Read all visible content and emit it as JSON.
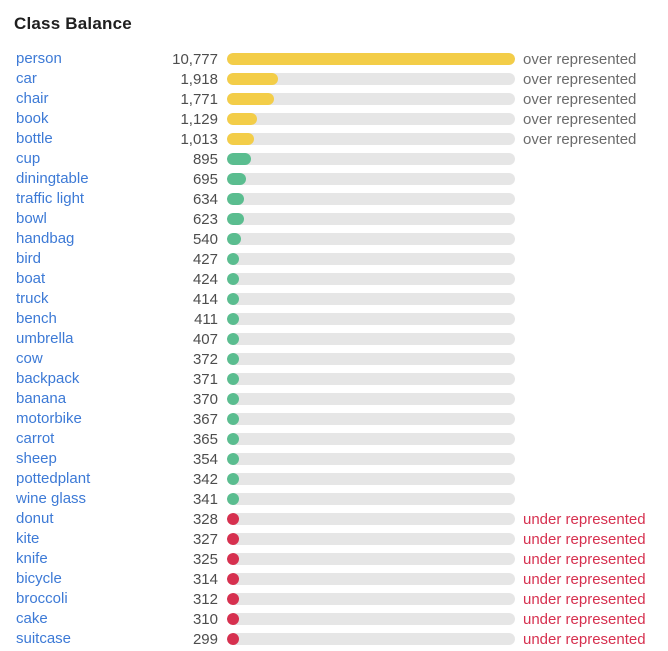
{
  "title": "Class Balance",
  "status_labels": {
    "over": "over represented",
    "under": "under represented"
  },
  "colors": {
    "over": "#F3CD48",
    "normal": "#5ABD8F",
    "under": "#D6304F",
    "track": "#E6E6E6",
    "link": "#3D7AD6",
    "count_text": "#4D4D4D",
    "status_over_text": "#6B6B6B",
    "status_under_text": "#D6304F",
    "title_text": "#1F1F1F"
  },
  "chart_data": {
    "type": "bar",
    "orientation": "horizontal",
    "title": "Class Balance",
    "max_value": 10777,
    "xlim": [
      0,
      10777
    ],
    "grid": false,
    "legend": false,
    "categories": [
      "person",
      "car",
      "chair",
      "book",
      "bottle",
      "cup",
      "diningtable",
      "traffic light",
      "bowl",
      "handbag",
      "bird",
      "boat",
      "truck",
      "bench",
      "umbrella",
      "cow",
      "backpack",
      "banana",
      "motorbike",
      "carrot",
      "sheep",
      "pottedplant",
      "wine glass",
      "donut",
      "kite",
      "knife",
      "bicycle",
      "broccoli",
      "cake",
      "suitcase"
    ],
    "values": [
      10777,
      1918,
      1771,
      1129,
      1013,
      895,
      695,
      634,
      623,
      540,
      427,
      424,
      414,
      411,
      407,
      372,
      371,
      370,
      367,
      365,
      354,
      342,
      341,
      328,
      327,
      325,
      314,
      312,
      310,
      299
    ],
    "statuses": [
      "over",
      "over",
      "over",
      "over",
      "over",
      "normal",
      "normal",
      "normal",
      "normal",
      "normal",
      "normal",
      "normal",
      "normal",
      "normal",
      "normal",
      "normal",
      "normal",
      "normal",
      "normal",
      "normal",
      "normal",
      "normal",
      "normal",
      "under",
      "under",
      "under",
      "under",
      "under",
      "under",
      "under"
    ]
  },
  "rows": [
    {
      "label": "person",
      "count": "10,777",
      "value": 10777,
      "status": "over"
    },
    {
      "label": "car",
      "count": "1,918",
      "value": 1918,
      "status": "over"
    },
    {
      "label": "chair",
      "count": "1,771",
      "value": 1771,
      "status": "over"
    },
    {
      "label": "book",
      "count": "1,129",
      "value": 1129,
      "status": "over"
    },
    {
      "label": "bottle",
      "count": "1,013",
      "value": 1013,
      "status": "over"
    },
    {
      "label": "cup",
      "count": "895",
      "value": 895,
      "status": "normal"
    },
    {
      "label": "diningtable",
      "count": "695",
      "value": 695,
      "status": "normal"
    },
    {
      "label": "traffic light",
      "count": "634",
      "value": 634,
      "status": "normal"
    },
    {
      "label": "bowl",
      "count": "623",
      "value": 623,
      "status": "normal"
    },
    {
      "label": "handbag",
      "count": "540",
      "value": 540,
      "status": "normal"
    },
    {
      "label": "bird",
      "count": "427",
      "value": 427,
      "status": "normal"
    },
    {
      "label": "boat",
      "count": "424",
      "value": 424,
      "status": "normal"
    },
    {
      "label": "truck",
      "count": "414",
      "value": 414,
      "status": "normal"
    },
    {
      "label": "bench",
      "count": "411",
      "value": 411,
      "status": "normal"
    },
    {
      "label": "umbrella",
      "count": "407",
      "value": 407,
      "status": "normal"
    },
    {
      "label": "cow",
      "count": "372",
      "value": 372,
      "status": "normal"
    },
    {
      "label": "backpack",
      "count": "371",
      "value": 371,
      "status": "normal"
    },
    {
      "label": "banana",
      "count": "370",
      "value": 370,
      "status": "normal"
    },
    {
      "label": "motorbike",
      "count": "367",
      "value": 367,
      "status": "normal"
    },
    {
      "label": "carrot",
      "count": "365",
      "value": 365,
      "status": "normal"
    },
    {
      "label": "sheep",
      "count": "354",
      "value": 354,
      "status": "normal"
    },
    {
      "label": "pottedplant",
      "count": "342",
      "value": 342,
      "status": "normal"
    },
    {
      "label": "wine glass",
      "count": "341",
      "value": 341,
      "status": "normal"
    },
    {
      "label": "donut",
      "count": "328",
      "value": 328,
      "status": "under"
    },
    {
      "label": "kite",
      "count": "327",
      "value": 327,
      "status": "under"
    },
    {
      "label": "knife",
      "count": "325",
      "value": 325,
      "status": "under"
    },
    {
      "label": "bicycle",
      "count": "314",
      "value": 314,
      "status": "under"
    },
    {
      "label": "broccoli",
      "count": "312",
      "value": 312,
      "status": "under"
    },
    {
      "label": "cake",
      "count": "310",
      "value": 310,
      "status": "under"
    },
    {
      "label": "suitcase",
      "count": "299",
      "value": 299,
      "status": "under"
    }
  ]
}
